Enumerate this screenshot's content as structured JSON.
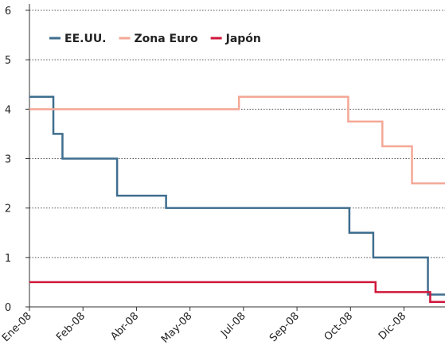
{
  "chart_data": {
    "type": "line",
    "step": true,
    "series": [
      {
        "name": "EE.UU.",
        "color": "#3e6d8e",
        "x": [
          0,
          21,
          21,
          29,
          29,
          77,
          77,
          120,
          120,
          281,
          281,
          302,
          302,
          350,
          350,
          365
        ],
        "values": [
          4.25,
          4.25,
          3.5,
          3.5,
          3.0,
          3.0,
          2.25,
          2.25,
          2.0,
          2.0,
          1.5,
          1.5,
          1.0,
          1.0,
          0.25,
          0.25
        ]
      },
      {
        "name": "Zona Euro",
        "color": "#f4a896",
        "x": [
          0,
          184,
          184,
          280,
          280,
          310,
          310,
          336,
          336,
          365
        ],
        "values": [
          4.0,
          4.0,
          4.25,
          4.25,
          3.75,
          3.75,
          3.25,
          3.25,
          2.5,
          2.5
        ]
      },
      {
        "name": "Japón",
        "color": "#d0163b",
        "x": [
          0,
          304,
          304,
          352,
          352,
          365
        ],
        "values": [
          0.5,
          0.5,
          0.3,
          0.3,
          0.1,
          0.1
        ]
      }
    ],
    "xlim": [
      0,
      365
    ],
    "xticks": [
      {
        "value": 0,
        "label": "Ene-08"
      },
      {
        "value": 47,
        "label": "Feb-08"
      },
      {
        "value": 94,
        "label": "Abr-08"
      },
      {
        "value": 141,
        "label": "May-08"
      },
      {
        "value": 188,
        "label": "Jul-08"
      },
      {
        "value": 235,
        "label": "Sep-08"
      },
      {
        "value": 282,
        "label": "Oct-08"
      },
      {
        "value": 329,
        "label": "Dic-08"
      }
    ],
    "ylim": [
      0,
      6
    ],
    "yticks": [
      0,
      1,
      2,
      3,
      4,
      5,
      6
    ],
    "grid": true,
    "legend": "top-left"
  }
}
